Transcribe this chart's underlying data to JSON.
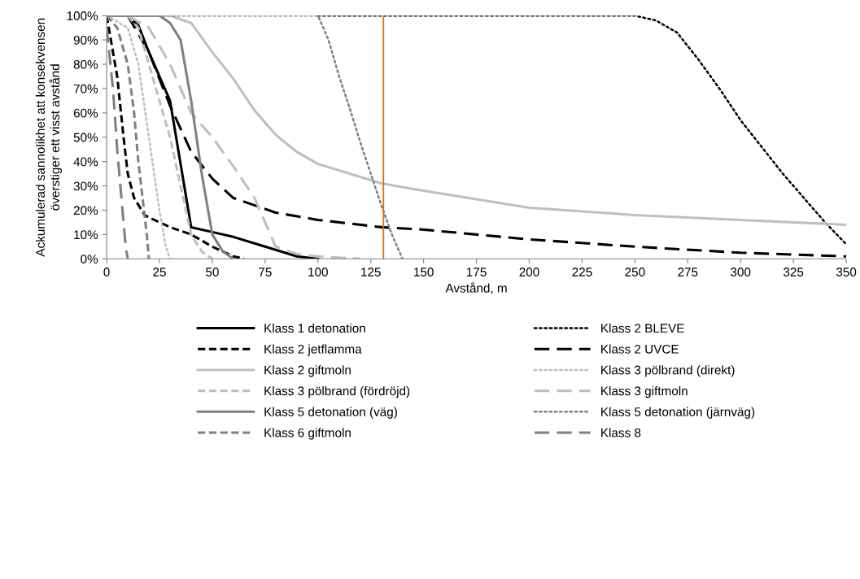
{
  "chart_data": {
    "type": "line",
    "xlabel": "Avstånd, m",
    "ylabel": "Ackumulerad sannolikhet att konsekvensen\növerstiger ett visst avstånd",
    "xlim": [
      0,
      350
    ],
    "xticks": [
      0,
      25,
      50,
      75,
      100,
      125,
      150,
      175,
      200,
      225,
      250,
      275,
      300,
      325,
      350
    ],
    "ylim": [
      0,
      100
    ],
    "yticks": [
      {
        "value": 0,
        "label": "0%"
      },
      {
        "value": 10,
        "label": "10%"
      },
      {
        "value": 20,
        "label": "20%"
      },
      {
        "value": 30,
        "label": "30%"
      },
      {
        "value": 40,
        "label": "40%"
      },
      {
        "value": 50,
        "label": "50%"
      },
      {
        "value": 60,
        "label": "60%"
      },
      {
        "value": 70,
        "label": "70%"
      },
      {
        "value": 80,
        "label": "80%"
      },
      {
        "value": 90,
        "label": "90%"
      },
      {
        "value": 100,
        "label": "100%"
      }
    ],
    "grid": false,
    "legend": "bottom",
    "marker": "none",
    "ref_lines": [
      {
        "axis": "x",
        "value": 131,
        "label": null,
        "color": "#e46c0a",
        "line_style": "solid"
      }
    ],
    "series": [
      {
        "name": "Klass 1 detonation",
        "color": "#000000",
        "line_style": "solid",
        "x": [
          0,
          10,
          15,
          20,
          30,
          40,
          50,
          60,
          75,
          90,
          100
        ],
        "values": [
          100,
          100,
          96,
          85,
          65,
          13,
          11,
          9,
          5,
          1,
          0
        ]
      },
      {
        "name": "Klass 2 BLEVE",
        "color": "#000000",
        "line_style": "dotted",
        "x": [
          100,
          250,
          260,
          270,
          280,
          290,
          300,
          310,
          320,
          330,
          340,
          350
        ],
        "values": [
          100,
          100,
          98,
          93,
          82,
          70,
          57,
          46,
          35,
          25,
          15,
          6
        ]
      },
      {
        "name": "Klass 2 jetflamma",
        "color": "#000000",
        "line_style": "dashed",
        "x": [
          0,
          5,
          8,
          10,
          13,
          18,
          20,
          30,
          40,
          50,
          60,
          65
        ],
        "values": [
          100,
          75,
          50,
          35,
          25,
          18,
          17,
          13,
          10,
          5,
          1,
          0
        ]
      },
      {
        "name": "Klass 2 UVCE",
        "color": "#000000",
        "line_style": "longdash",
        "x": [
          10,
          20,
          30,
          40,
          50,
          60,
          80,
          100,
          130,
          150,
          200,
          250,
          300,
          350
        ],
        "values": [
          100,
          85,
          63,
          44,
          33,
          25,
          19,
          16,
          13,
          12,
          8,
          5,
          2.5,
          1
        ]
      },
      {
        "name": "Klass 2 giftmoln",
        "color": "#bfbfbf",
        "line_style": "solid",
        "x": [
          0,
          30,
          40,
          50,
          60,
          70,
          80,
          90,
          100,
          130,
          150,
          200,
          250,
          300,
          350
        ],
        "values": [
          100,
          100,
          97,
          85,
          74,
          61,
          51,
          44,
          39,
          31,
          28,
          21,
          18,
          16,
          14
        ]
      },
      {
        "name": "Klass 3 pölbrand (direkt)",
        "color": "#bfbfbf",
        "line_style": "dotted",
        "x": [
          0,
          10,
          15,
          20,
          25,
          28,
          30
        ],
        "values": [
          100,
          95,
          80,
          50,
          20,
          5,
          0
        ]
      },
      {
        "name": "Klass 3 pölbrand (fördröjd)",
        "color": "#bfbfbf",
        "line_style": "dashed",
        "x": [
          10,
          15,
          20,
          25,
          30,
          35,
          40,
          45,
          50
        ],
        "values": [
          100,
          95,
          80,
          65,
          50,
          30,
          10,
          3,
          0
        ]
      },
      {
        "name": "Klass 3 giftmoln",
        "color": "#bfbfbf",
        "line_style": "longdash",
        "x": [
          10,
          20,
          30,
          40,
          50,
          60,
          70,
          75,
          80,
          90,
          100,
          120
        ],
        "values": [
          100,
          95,
          80,
          60,
          50,
          38,
          25,
          15,
          5,
          2,
          1,
          0
        ]
      },
      {
        "name": "Klass 5 detonation (väg)",
        "color": "#808080",
        "line_style": "solid",
        "x": [
          0,
          25,
          30,
          35,
          40,
          45,
          50,
          55,
          60
        ],
        "values": [
          100,
          100,
          97,
          90,
          65,
          35,
          10,
          3,
          0
        ]
      },
      {
        "name": "Klass 5 detonation (järnväg)",
        "color": "#808080",
        "line_style": "dotted",
        "x": [
          0,
          100,
          105,
          110,
          115,
          120,
          125,
          130,
          135,
          140
        ],
        "values": [
          100,
          100,
          90,
          75,
          62,
          48,
          35,
          22,
          10,
          0
        ]
      },
      {
        "name": "Klass 6 giftmoln",
        "color": "#808080",
        "line_style": "dashed",
        "x": [
          0,
          5,
          10,
          13,
          15,
          17,
          19,
          20
        ],
        "values": [
          100,
          95,
          80,
          60,
          40,
          25,
          10,
          0
        ]
      },
      {
        "name": "Klass 8",
        "color": "#808080",
        "line_style": "longdash",
        "x": [
          0,
          3,
          5,
          7,
          9,
          10
        ],
        "values": [
          95,
          70,
          45,
          25,
          5,
          0
        ]
      }
    ]
  }
}
